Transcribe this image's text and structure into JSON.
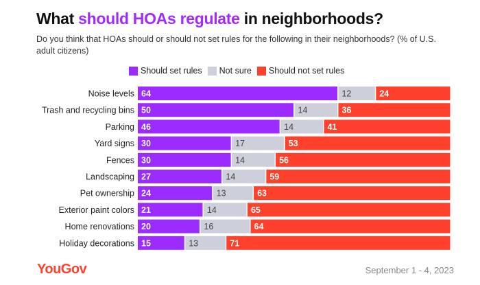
{
  "title": {
    "pre": "What ",
    "highlight": "should HOAs regulate",
    "post": " in neighborhoods?"
  },
  "subtitle": "Do you think that HOAs should or should not set rules for the following in their neighborhoods? (% of U.S. adult citizens)",
  "footer": {
    "logo": "YouGov",
    "date": "September 1 - 4, 2023"
  },
  "chart_data": {
    "type": "bar",
    "orientation": "horizontal-stacked-100",
    "categories": [
      "Noise levels",
      "Trash and recycling bins",
      "Parking",
      "Yard signs",
      "Fences",
      "Landscaping",
      "Pet ownership",
      "Exterior paint colors",
      "Home renovations",
      "Holiday decorations"
    ],
    "series": [
      {
        "name": "Should set rules",
        "color": "#9b2bff",
        "label_color": "#ffffff",
        "values": [
          64,
          50,
          46,
          30,
          30,
          27,
          24,
          21,
          20,
          15
        ]
      },
      {
        "name": "Not sure",
        "color": "#cdd0da",
        "label_color": "#444444",
        "values": [
          12,
          14,
          14,
          17,
          14,
          14,
          13,
          14,
          16,
          13
        ]
      },
      {
        "name": "Should not set rules",
        "color": "#ff412c",
        "label_color": "#ffffff",
        "values": [
          24,
          36,
          41,
          53,
          56,
          59,
          63,
          65,
          64,
          71
        ]
      }
    ],
    "legend": "top",
    "grid": false
  }
}
